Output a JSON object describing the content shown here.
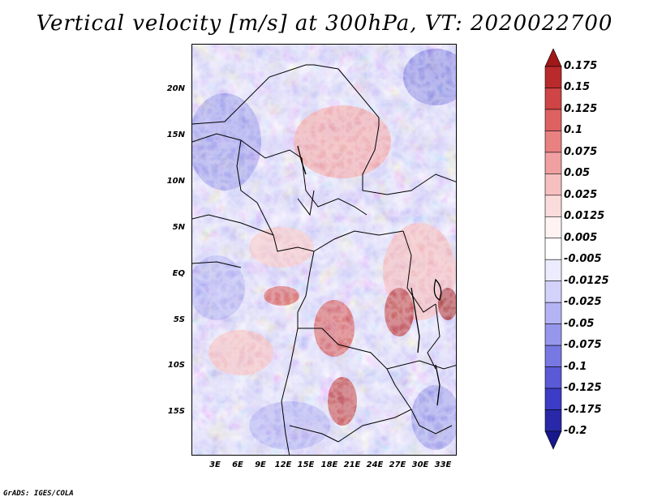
{
  "title": "Vertical velocity [m/s] at 300hPa, VT: 2020022700",
  "footer": "GrADS: IGES/COLA",
  "map": {
    "region": "Central Africa",
    "extent": {
      "lon": [
        0,
        35
      ],
      "lat": [
        -20,
        25
      ]
    },
    "lat_labels": [
      "20N",
      "15N",
      "10N",
      "5N",
      "EQ",
      "5S",
      "10S",
      "15S"
    ],
    "lat_values": [
      20,
      15,
      10,
      5,
      0,
      -5,
      -10,
      -15
    ],
    "lon_labels": [
      "3E",
      "6E",
      "9E",
      "12E",
      "15E",
      "18E",
      "21E",
      "24E",
      "27E",
      "30E",
      "33E"
    ],
    "lon_values": [
      3,
      6,
      9,
      12,
      15,
      18,
      21,
      24,
      27,
      30,
      33
    ]
  },
  "colorbar": {
    "labels": [
      "0.175",
      "0.15",
      "0.125",
      "0.1",
      "0.075",
      "0.05",
      "0.025",
      "0.0125",
      "0.005",
      "-0.005",
      "-0.0125",
      "-0.025",
      "-0.05",
      "-0.075",
      "-0.1",
      "-0.125",
      "-0.175",
      "-0.2"
    ],
    "colors": [
      "#a01818",
      "#b92a2a",
      "#cf4444",
      "#dd6161",
      "#e98181",
      "#f0a0a0",
      "#f6c0c0",
      "#fbdcdc",
      "#fff2f2",
      "#ffffff",
      "#ececff",
      "#d2d2fb",
      "#b4b4f4",
      "#9696ec",
      "#7878e2",
      "#5a5ad6",
      "#3c3cc6",
      "#2828a8",
      "#18188c"
    ]
  }
}
